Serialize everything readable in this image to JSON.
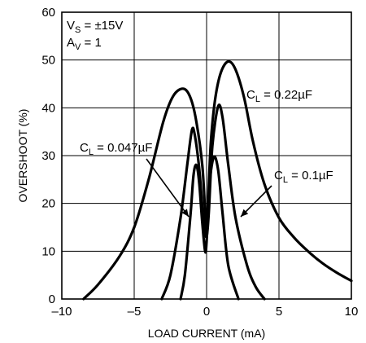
{
  "chart_data": {
    "type": "line",
    "xlabel": "LOAD CURRENT (mA)",
    "ylabel": "OVERSHOOT (%)",
    "xlim": [
      -10,
      10
    ],
    "ylim": [
      0,
      60
    ],
    "x_ticks": [
      -10,
      -5,
      0,
      5,
      10
    ],
    "x_tick_labels": [
      "–10",
      "–5",
      "0",
      "5",
      "10"
    ],
    "y_ticks": [
      0,
      10,
      20,
      30,
      40,
      50,
      60
    ],
    "y_tick_labels": [
      "0",
      "10",
      "20",
      "30",
      "40",
      "50",
      "60"
    ],
    "grid": true,
    "conditions": [
      {
        "main": "V",
        "sub": "S",
        "rest": " = ±15V"
      },
      {
        "main": "A",
        "sub": "V",
        "rest": " = 1"
      }
    ],
    "series": [
      {
        "name": "C_L = 0.22µF",
        "label": {
          "main": "C",
          "sub": "L",
          "rest": " = 0.22µF"
        },
        "points": [
          [
            -8.5,
            0
          ],
          [
            -7.5,
            3
          ],
          [
            -6,
            9
          ],
          [
            -5,
            15
          ],
          [
            -4,
            25
          ],
          [
            -3,
            37
          ],
          [
            -2.3,
            42.5
          ],
          [
            -1.6,
            44
          ],
          [
            -1.1,
            42
          ],
          [
            -0.7,
            37
          ],
          [
            -0.3,
            28
          ],
          [
            -0.1,
            18
          ],
          [
            0,
            13
          ],
          [
            0.1,
            20
          ],
          [
            0.3,
            33
          ],
          [
            0.6,
            42
          ],
          [
            1,
            47.5
          ],
          [
            1.5,
            49.7
          ],
          [
            2,
            48
          ],
          [
            2.6,
            42
          ],
          [
            3.2,
            33
          ],
          [
            4,
            24
          ],
          [
            5,
            17
          ],
          [
            6,
            13
          ],
          [
            7,
            10
          ],
          [
            8,
            7.5
          ],
          [
            9,
            5.5
          ],
          [
            10,
            3.8
          ]
        ]
      },
      {
        "name": "C_L = 0.1µF",
        "label": {
          "main": "C",
          "sub": "L",
          "rest": " = 0.1µF"
        },
        "points": [
          [
            -3.1,
            0
          ],
          [
            -2.5,
            5
          ],
          [
            -1.8,
            17
          ],
          [
            -1.3,
            29
          ],
          [
            -1,
            35.5
          ],
          [
            -0.8,
            34
          ],
          [
            -0.5,
            27
          ],
          [
            -0.2,
            16
          ],
          [
            0,
            13
          ],
          [
            0.15,
            18
          ],
          [
            0.4,
            32
          ],
          [
            0.8,
            40.3
          ],
          [
            1.1,
            38
          ],
          [
            1.5,
            28
          ],
          [
            2,
            17
          ],
          [
            2.8,
            7
          ],
          [
            3.4,
            2.5
          ],
          [
            4,
            0
          ]
        ]
      },
      {
        "name": "C_L = 0.047µF",
        "label": {
          "main": "C",
          "sub": "L",
          "rest": " = 0.047µF"
        },
        "points": [
          [
            -1.8,
            0
          ],
          [
            -1.5,
            5
          ],
          [
            -1.1,
            18
          ],
          [
            -0.9,
            26
          ],
          [
            -0.7,
            28
          ],
          [
            -0.5,
            24
          ],
          [
            -0.3,
            16
          ],
          [
            -0.1,
            10
          ],
          [
            0,
            12
          ],
          [
            0.2,
            24
          ],
          [
            0.5,
            29.7
          ],
          [
            0.8,
            27
          ],
          [
            1.1,
            18
          ],
          [
            1.5,
            7
          ],
          [
            2.2,
            0
          ]
        ]
      }
    ]
  }
}
